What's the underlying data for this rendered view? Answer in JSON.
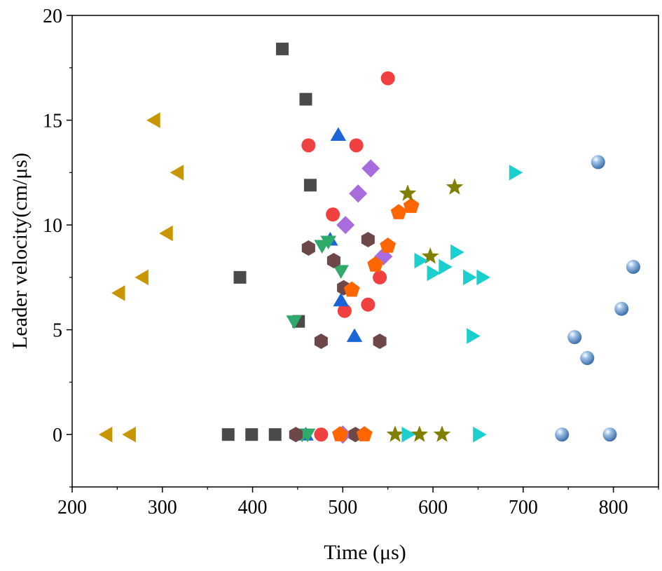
{
  "chart_data": {
    "type": "scatter",
    "title": "",
    "xlabel": "Time (μs)",
    "ylabel": "Leader velocity(cm/μs)",
    "xlim": [
      200,
      850
    ],
    "ylim": [
      -2.5,
      20
    ],
    "xticks": [
      "200",
      "300",
      "400",
      "500",
      "600",
      "700",
      "800"
    ],
    "yticks": [
      "0",
      "5",
      "10",
      "15",
      "20"
    ],
    "grid": false,
    "series": [
      {
        "marker": "square",
        "color": "#4a4a4a",
        "points": [
          [
            433,
            18.4
          ],
          [
            459,
            16.0
          ],
          [
            464,
            11.9
          ],
          [
            386,
            7.5
          ],
          [
            451,
            5.4
          ],
          [
            373,
            0
          ],
          [
            399,
            0
          ],
          [
            425,
            0
          ]
        ]
      },
      {
        "marker": "circle",
        "color": "#f04040",
        "points": [
          [
            550,
            17.0
          ],
          [
            462,
            13.8
          ],
          [
            515,
            13.8
          ],
          [
            489,
            10.5
          ],
          [
            541,
            7.5
          ],
          [
            528,
            6.2
          ],
          [
            502,
            5.9
          ],
          [
            476,
            0
          ]
        ]
      },
      {
        "marker": "triangle-up",
        "color": "#1a66d9",
        "points": [
          [
            495,
            14.3
          ],
          [
            486,
            9.3
          ],
          [
            498,
            6.4
          ],
          [
            513,
            4.7
          ],
          [
            459,
            0
          ]
        ]
      },
      {
        "marker": "triangle-down",
        "color": "#2eaa6a",
        "points": [
          [
            446,
            5.4
          ],
          [
            477,
            9.0
          ],
          [
            484,
            9.2
          ],
          [
            498,
            7.8
          ],
          [
            455,
            0
          ],
          [
            461,
            0
          ]
        ]
      },
      {
        "marker": "diamond",
        "color": "#a86cdc",
        "points": [
          [
            531,
            12.7
          ],
          [
            517,
            11.5
          ],
          [
            503,
            10.0
          ],
          [
            545,
            8.5
          ],
          [
            500,
            0
          ]
        ]
      },
      {
        "marker": "hexagon",
        "color": "#6e4848",
        "points": [
          [
            462,
            8.9
          ],
          [
            490,
            8.3
          ],
          [
            501,
            7.0
          ],
          [
            528,
            9.3
          ],
          [
            476,
            4.45
          ],
          [
            541,
            4.45
          ],
          [
            448,
            0
          ],
          [
            514,
            0
          ]
        ]
      },
      {
        "marker": "pentagon",
        "color": "#ff6600",
        "points": [
          [
            562,
            10.6
          ],
          [
            576,
            10.9
          ],
          [
            550,
            9.0
          ],
          [
            536,
            8.1
          ],
          [
            510,
            6.9
          ],
          [
            497,
            0
          ],
          [
            524,
            0
          ]
        ]
      },
      {
        "marker": "star",
        "color": "#808000",
        "points": [
          [
            572,
            11.5
          ],
          [
            624,
            11.8
          ],
          [
            597,
            8.5
          ],
          [
            558,
            0
          ],
          [
            585,
            0
          ],
          [
            610,
            0
          ]
        ]
      },
      {
        "marker": "triangle-right",
        "color": "#1ccfcf",
        "points": [
          [
            691,
            12.5
          ],
          [
            586,
            8.3
          ],
          [
            600,
            7.7
          ],
          [
            613,
            8.0
          ],
          [
            626,
            8.7
          ],
          [
            640,
            7.5
          ],
          [
            655,
            7.5
          ],
          [
            644,
            4.7
          ],
          [
            572,
            0
          ],
          [
            651,
            0
          ]
        ]
      },
      {
        "marker": "triangle-left",
        "color": "#c89600",
        "points": [
          [
            291,
            15.0
          ],
          [
            317,
            12.5
          ],
          [
            305,
            9.6
          ],
          [
            278,
            7.5
          ],
          [
            252,
            6.75
          ],
          [
            238,
            0
          ],
          [
            264,
            0
          ]
        ]
      },
      {
        "marker": "sphere",
        "color": "#5b8fc8",
        "points": [
          [
            783,
            13.0
          ],
          [
            822,
            8.0
          ],
          [
            809,
            6.0
          ],
          [
            757,
            4.65
          ],
          [
            771,
            3.65
          ],
          [
            743,
            0
          ],
          [
            796,
            0
          ]
        ]
      }
    ]
  }
}
